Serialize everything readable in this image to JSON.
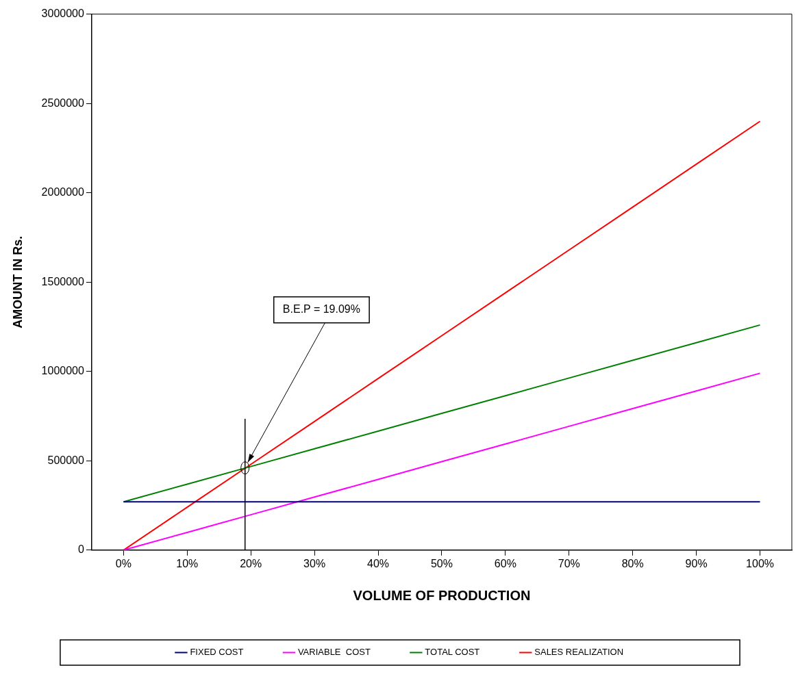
{
  "chart_data": {
    "type": "line",
    "xlabel": "VOLUME OF PRODUCTION",
    "ylabel": "AMOUNT IN Rs.",
    "x": [
      0,
      10,
      20,
      30,
      40,
      50,
      60,
      70,
      80,
      90,
      100
    ],
    "xlim": [
      -5,
      105
    ],
    "xticks": [
      {
        "value": 0,
        "label": "0%"
      },
      {
        "value": 10,
        "label": "10%"
      },
      {
        "value": 20,
        "label": "20%"
      },
      {
        "value": 30,
        "label": "30%"
      },
      {
        "value": 40,
        "label": "40%"
      },
      {
        "value": 50,
        "label": "50%"
      },
      {
        "value": 60,
        "label": "60%"
      },
      {
        "value": 70,
        "label": "70%"
      },
      {
        "value": 80,
        "label": "80%"
      },
      {
        "value": 90,
        "label": "90%"
      },
      {
        "value": 100,
        "label": "100%"
      }
    ],
    "ylim": [
      0,
      3000000
    ],
    "yticks": [
      0,
      500000,
      1000000,
      1500000,
      2000000,
      2500000,
      3000000
    ],
    "series": [
      {
        "name": "FIXED COST",
        "color": "#000080",
        "values": [
          270000,
          270000,
          270000,
          270000,
          270000,
          270000,
          270000,
          270000,
          270000,
          270000,
          270000
        ]
      },
      {
        "name": "VARIABLE  COST",
        "color": "#ff00ff",
        "values": [
          0,
          99000,
          198000,
          297000,
          396000,
          495000,
          594000,
          693000,
          792000,
          891000,
          990000
        ]
      },
      {
        "name": "TOTAL COST",
        "color": "#008000",
        "values": [
          270000,
          369000,
          468000,
          567000,
          666000,
          765000,
          864000,
          963000,
          1062000,
          1161000,
          1260000
        ]
      },
      {
        "name": "SALES REALIZATION",
        "color": "#ff0000",
        "values": [
          0,
          240000,
          480000,
          720000,
          960000,
          1200000,
          1440000,
          1680000,
          1920000,
          2160000,
          2400000
        ]
      }
    ],
    "ref_lines": [
      {
        "axis": "x",
        "value": 19.09,
        "color": "#000000"
      }
    ],
    "annotations": [
      {
        "text": "B.E.P = 19.09%",
        "x": 19.09,
        "y": 460000
      }
    ],
    "grid": false,
    "legend": "bottom",
    "marker": "none",
    "line_style": "solid"
  }
}
